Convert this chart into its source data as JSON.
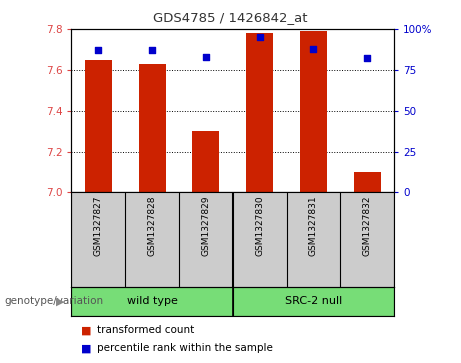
{
  "title": "GDS4785 / 1426842_at",
  "samples": [
    "GSM1327827",
    "GSM1327828",
    "GSM1327829",
    "GSM1327830",
    "GSM1327831",
    "GSM1327832"
  ],
  "red_values": [
    7.65,
    7.63,
    7.3,
    7.78,
    7.79,
    7.1
  ],
  "blue_values": [
    87,
    87,
    83,
    95,
    88,
    82
  ],
  "ylim_left": [
    7.0,
    7.8
  ],
  "ylim_right": [
    0,
    100
  ],
  "yticks_left": [
    7.0,
    7.2,
    7.4,
    7.6,
    7.8
  ],
  "yticks_right": [
    0,
    25,
    50,
    75,
    100
  ],
  "ytick_labels_right": [
    "0",
    "25",
    "50",
    "75",
    "100%"
  ],
  "bar_color": "#CC2200",
  "dot_color": "#0000CC",
  "bg_color": "#CCCCCC",
  "plot_bg": "#FFFFFF",
  "bar_width": 0.5,
  "genotype_label": "genotype/variation",
  "legend_red": "transformed count",
  "legend_blue": "percentile rank within the sample",
  "title_color": "#333333",
  "left_tick_color": "#DD4444",
  "right_tick_color": "#0000CC",
  "group_green": "#77DD77"
}
